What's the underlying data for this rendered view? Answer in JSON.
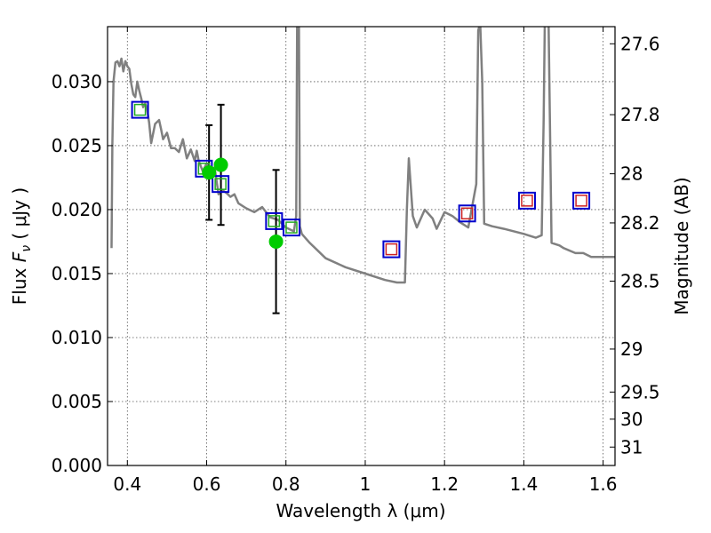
{
  "chart_data": {
    "type": "scatter",
    "xlabel": "Wavelength  λ (μm)",
    "ylabel_left": {
      "prefix": "Flux  ",
      "symbol": "F",
      "subscript": "ν",
      "suffix": "  ( μJy )"
    },
    "ylabel_right": "Magnitude (AB)",
    "xlim": [
      0.35,
      1.63
    ],
    "ylim": [
      0.0,
      0.0343
    ],
    "grid": true,
    "x_ticks": [
      0.4,
      0.6,
      0.8,
      1.0,
      1.2,
      1.4,
      1.6
    ],
    "x_tick_labels": [
      "0.4",
      "0.6",
      "0.8",
      "1",
      "1.2",
      "1.4",
      "1.6"
    ],
    "y_ticks": [
      0.0,
      0.005,
      0.01,
      0.015,
      0.02,
      0.025,
      0.03
    ],
    "y_tick_labels": [
      "0.000",
      "0.005",
      "0.010",
      "0.015",
      "0.020",
      "0.025",
      "0.030"
    ],
    "right_ticks": [
      {
        "flux": 0.03296,
        "label": "27.6"
      },
      {
        "flux": 0.02742,
        "label": "27.8"
      },
      {
        "flux": 0.0228,
        "label": "28"
      },
      {
        "flux": 0.01896,
        "label": "28.2"
      },
      {
        "flux": 0.01441,
        "label": "28.5"
      },
      {
        "flux": 0.0091,
        "label": "29"
      },
      {
        "flux": 0.00574,
        "label": "29.5"
      },
      {
        "flux": 0.00362,
        "label": "30"
      },
      {
        "flux": 0.00144,
        "label": "31"
      }
    ],
    "colors": {
      "model": "#808080",
      "obs_marker": "#00cc00",
      "model_box": "#0000cc",
      "small_box": "#cc2222",
      "errorbar": "#000000"
    },
    "model_spectrum": {
      "x": [
        0.36,
        0.362,
        0.365,
        0.37,
        0.375,
        0.38,
        0.385,
        0.39,
        0.395,
        0.4,
        0.405,
        0.41,
        0.415,
        0.42,
        0.425,
        0.43,
        0.435,
        0.44,
        0.445,
        0.45,
        0.455,
        0.46,
        0.47,
        0.48,
        0.485,
        0.49,
        0.5,
        0.51,
        0.52,
        0.53,
        0.54,
        0.55,
        0.56,
        0.57,
        0.575,
        0.58,
        0.59,
        0.6,
        0.61,
        0.62,
        0.63,
        0.64,
        0.65,
        0.66,
        0.67,
        0.68,
        0.7,
        0.72,
        0.74,
        0.76,
        0.78,
        0.8,
        0.82,
        0.826,
        0.829,
        0.832,
        0.835,
        0.84,
        0.86,
        0.9,
        0.95,
        1.0,
        1.05,
        1.08,
        1.1,
        1.105,
        1.11,
        1.12,
        1.13,
        1.15,
        1.17,
        1.18,
        1.2,
        1.22,
        1.24,
        1.26,
        1.28,
        1.285,
        1.29,
        1.295,
        1.3,
        1.32,
        1.35,
        1.4,
        1.43,
        1.445,
        1.45,
        1.455,
        1.46,
        1.47,
        1.49,
        1.5,
        1.53,
        1.55,
        1.57,
        1.6,
        1.63
      ],
      "y": [
        0.017,
        0.025,
        0.03,
        0.0315,
        0.0316,
        0.0312,
        0.0318,
        0.0308,
        0.0316,
        0.0312,
        0.031,
        0.0298,
        0.029,
        0.0288,
        0.03,
        0.0293,
        0.0287,
        0.028,
        0.0283,
        0.0278,
        0.0268,
        0.0252,
        0.0267,
        0.027,
        0.0263,
        0.0255,
        0.026,
        0.0248,
        0.0248,
        0.0245,
        0.0255,
        0.024,
        0.0247,
        0.0238,
        0.0246,
        0.0238,
        0.023,
        0.0236,
        0.0225,
        0.0233,
        0.0212,
        0.0215,
        0.0213,
        0.021,
        0.0212,
        0.0205,
        0.0201,
        0.0198,
        0.0202,
        0.0194,
        0.0192,
        0.0186,
        0.0183,
        0.0195,
        0.04,
        0.04,
        0.0187,
        0.0181,
        0.0174,
        0.0162,
        0.0155,
        0.015,
        0.0145,
        0.0143,
        0.0143,
        0.02,
        0.024,
        0.0195,
        0.0186,
        0.02,
        0.0193,
        0.0185,
        0.0198,
        0.0195,
        0.019,
        0.0186,
        0.022,
        0.034,
        0.0346,
        0.03,
        0.0189,
        0.0187,
        0.0185,
        0.0181,
        0.0178,
        0.018,
        0.027,
        0.04,
        0.04,
        0.0174,
        0.0172,
        0.017,
        0.0166,
        0.0166,
        0.0163,
        0.0163,
        0.0163
      ]
    },
    "observations": [
      {
        "x": 0.606,
        "y": 0.0229,
        "yerr": 0.0037
      },
      {
        "x": 0.636,
        "y": 0.0235,
        "yerr": 0.0047
      },
      {
        "x": 0.775,
        "y": 0.0175,
        "yerr": 0.0056
      }
    ],
    "model_boxes": [
      {
        "x": 0.432,
        "y": 0.0278
      },
      {
        "x": 0.593,
        "y": 0.0232
      },
      {
        "x": 0.635,
        "y": 0.022
      },
      {
        "x": 0.77,
        "y": 0.0191
      },
      {
        "x": 0.814,
        "y": 0.0186
      },
      {
        "x": 1.066,
        "y": 0.0169
      },
      {
        "x": 1.257,
        "y": 0.0197
      },
      {
        "x": 1.408,
        "y": 0.0207
      },
      {
        "x": 1.545,
        "y": 0.0207
      }
    ],
    "small_boxes": [
      {
        "x": 0.432,
        "y": 0.0278,
        "color": "#22aa22"
      },
      {
        "x": 0.593,
        "y": 0.0232,
        "color": "#22aa22"
      },
      {
        "x": 0.635,
        "y": 0.022,
        "color": "#22aa22"
      },
      {
        "x": 0.77,
        "y": 0.0191,
        "color": "#22aa22"
      },
      {
        "x": 0.814,
        "y": 0.0186,
        "color": "#22aa22"
      },
      {
        "x": 1.066,
        "y": 0.0169,
        "color": "#cc2222"
      },
      {
        "x": 1.257,
        "y": 0.0197,
        "color": "#cc2222"
      },
      {
        "x": 1.408,
        "y": 0.0207,
        "color": "#cc2222"
      },
      {
        "x": 1.545,
        "y": 0.0207,
        "color": "#cc2222"
      }
    ]
  }
}
